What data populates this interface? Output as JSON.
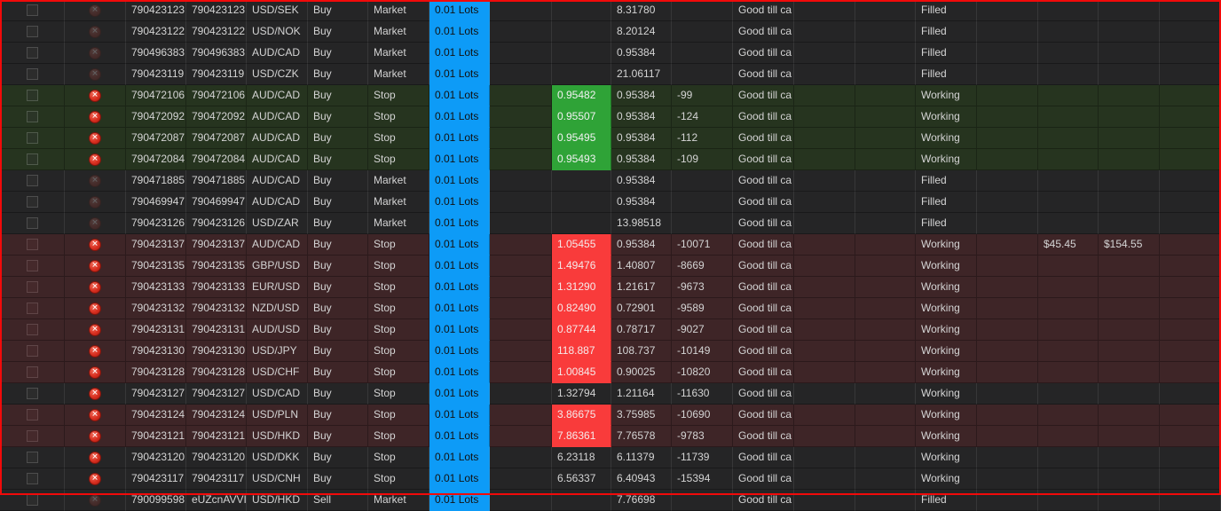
{
  "colors": {
    "row_dark": "#252526",
    "row_green": "#26341f",
    "row_maroon": "#3e2527",
    "lots_column_highlight": "#0d9bf7",
    "entry_green_highlight": "#2fa337",
    "entry_red_highlight": "#f93b3b",
    "annotation_border": "#f20a0a",
    "text": "#d4d4d4"
  },
  "icons": {
    "cancel_order": "cancel-x-circle",
    "checkbox": "row-select-checkbox"
  },
  "table": {
    "rows": [
      {
        "order_id": "790423123",
        "position_id": "790423123",
        "symbol": "USD/SEK",
        "side": "Buy",
        "order_type": "Market",
        "lots": "0.01 Lots",
        "entry_price": "",
        "entry_highlight": "none",
        "current_price": "8.31780",
        "distance": "",
        "expiry": "Good till ca",
        "status": "Filled",
        "gain": "",
        "loss": "",
        "row_style": "dark",
        "cancel_enabled": false
      },
      {
        "order_id": "790423122",
        "position_id": "790423122",
        "symbol": "USD/NOK",
        "side": "Buy",
        "order_type": "Market",
        "lots": "0.01 Lots",
        "entry_price": "",
        "entry_highlight": "none",
        "current_price": "8.20124",
        "distance": "",
        "expiry": "Good till ca",
        "status": "Filled",
        "gain": "",
        "loss": "",
        "row_style": "dark",
        "cancel_enabled": false
      },
      {
        "order_id": "790496383",
        "position_id": "790496383",
        "symbol": "AUD/CAD",
        "side": "Buy",
        "order_type": "Market",
        "lots": "0.01 Lots",
        "entry_price": "",
        "entry_highlight": "none",
        "current_price": "0.95384",
        "distance": "",
        "expiry": "Good till ca",
        "status": "Filled",
        "gain": "",
        "loss": "",
        "row_style": "dark",
        "cancel_enabled": false
      },
      {
        "order_id": "790423119",
        "position_id": "790423119",
        "symbol": "USD/CZK",
        "side": "Buy",
        "order_type": "Market",
        "lots": "0.01 Lots",
        "entry_price": "",
        "entry_highlight": "none",
        "current_price": "21.06117",
        "distance": "",
        "expiry": "Good till ca",
        "status": "Filled",
        "gain": "",
        "loss": "",
        "row_style": "dark",
        "cancel_enabled": false
      },
      {
        "order_id": "790472106",
        "position_id": "790472106",
        "symbol": "AUD/CAD",
        "side": "Buy",
        "order_type": "Stop",
        "lots": "0.01 Lots",
        "entry_price": "0.95482",
        "entry_highlight": "green",
        "current_price": "0.95384",
        "distance": "-99",
        "expiry": "Good till ca",
        "status": "Working",
        "gain": "",
        "loss": "",
        "row_style": "green",
        "cancel_enabled": true
      },
      {
        "order_id": "790472092",
        "position_id": "790472092",
        "symbol": "AUD/CAD",
        "side": "Buy",
        "order_type": "Stop",
        "lots": "0.01 Lots",
        "entry_price": "0.95507",
        "entry_highlight": "green",
        "current_price": "0.95384",
        "distance": "-124",
        "expiry": "Good till ca",
        "status": "Working",
        "gain": "",
        "loss": "",
        "row_style": "green",
        "cancel_enabled": true
      },
      {
        "order_id": "790472087",
        "position_id": "790472087",
        "symbol": "AUD/CAD",
        "side": "Buy",
        "order_type": "Stop",
        "lots": "0.01 Lots",
        "entry_price": "0.95495",
        "entry_highlight": "green",
        "current_price": "0.95384",
        "distance": "-112",
        "expiry": "Good till ca",
        "status": "Working",
        "gain": "",
        "loss": "",
        "row_style": "green",
        "cancel_enabled": true
      },
      {
        "order_id": "790472084",
        "position_id": "790472084",
        "symbol": "AUD/CAD",
        "side": "Buy",
        "order_type": "Stop",
        "lots": "0.01 Lots",
        "entry_price": "0.95493",
        "entry_highlight": "green",
        "current_price": "0.95384",
        "distance": "-109",
        "expiry": "Good till ca",
        "status": "Working",
        "gain": "",
        "loss": "",
        "row_style": "green",
        "cancel_enabled": true
      },
      {
        "order_id": "790471885",
        "position_id": "790471885",
        "symbol": "AUD/CAD",
        "side": "Buy",
        "order_type": "Market",
        "lots": "0.01 Lots",
        "entry_price": "",
        "entry_highlight": "none",
        "current_price": "0.95384",
        "distance": "",
        "expiry": "Good till ca",
        "status": "Filled",
        "gain": "",
        "loss": "",
        "row_style": "dark",
        "cancel_enabled": false
      },
      {
        "order_id": "790469947",
        "position_id": "790469947",
        "symbol": "AUD/CAD",
        "side": "Buy",
        "order_type": "Market",
        "lots": "0.01 Lots",
        "entry_price": "",
        "entry_highlight": "none",
        "current_price": "0.95384",
        "distance": "",
        "expiry": "Good till ca",
        "status": "Filled",
        "gain": "",
        "loss": "",
        "row_style": "dark",
        "cancel_enabled": false
      },
      {
        "order_id": "790423126",
        "position_id": "790423126",
        "symbol": "USD/ZAR",
        "side": "Buy",
        "order_type": "Market",
        "lots": "0.01 Lots",
        "entry_price": "",
        "entry_highlight": "none",
        "current_price": "13.98518",
        "distance": "",
        "expiry": "Good till ca",
        "status": "Filled",
        "gain": "",
        "loss": "",
        "row_style": "dark",
        "cancel_enabled": false
      },
      {
        "order_id": "790423137",
        "position_id": "790423137",
        "symbol": "AUD/CAD",
        "side": "Buy",
        "order_type": "Stop",
        "lots": "0.01 Lots",
        "entry_price": "1.05455",
        "entry_highlight": "red",
        "current_price": "0.95384",
        "distance": "-10071",
        "expiry": "Good till ca",
        "status": "Working",
        "gain": "$45.45",
        "loss": "$154.55",
        "row_style": "maroon",
        "cancel_enabled": true
      },
      {
        "order_id": "790423135",
        "position_id": "790423135",
        "symbol": "GBP/USD",
        "side": "Buy",
        "order_type": "Stop",
        "lots": "0.01 Lots",
        "entry_price": "1.49476",
        "entry_highlight": "red",
        "current_price": "1.40807",
        "distance": "-8669",
        "expiry": "Good till ca",
        "status": "Working",
        "gain": "",
        "loss": "",
        "row_style": "maroon",
        "cancel_enabled": true
      },
      {
        "order_id": "790423133",
        "position_id": "790423133",
        "symbol": "EUR/USD",
        "side": "Buy",
        "order_type": "Stop",
        "lots": "0.01 Lots",
        "entry_price": "1.31290",
        "entry_highlight": "red",
        "current_price": "1.21617",
        "distance": "-9673",
        "expiry": "Good till ca",
        "status": "Working",
        "gain": "",
        "loss": "",
        "row_style": "maroon",
        "cancel_enabled": true
      },
      {
        "order_id": "790423132",
        "position_id": "790423132",
        "symbol": "NZD/USD",
        "side": "Buy",
        "order_type": "Stop",
        "lots": "0.01 Lots",
        "entry_price": "0.82490",
        "entry_highlight": "red",
        "current_price": "0.72901",
        "distance": "-9589",
        "expiry": "Good till ca",
        "status": "Working",
        "gain": "",
        "loss": "",
        "row_style": "maroon",
        "cancel_enabled": true
      },
      {
        "order_id": "790423131",
        "position_id": "790423131",
        "symbol": "AUD/USD",
        "side": "Buy",
        "order_type": "Stop",
        "lots": "0.01 Lots",
        "entry_price": "0.87744",
        "entry_highlight": "red",
        "current_price": "0.78717",
        "distance": "-9027",
        "expiry": "Good till ca",
        "status": "Working",
        "gain": "",
        "loss": "",
        "row_style": "maroon",
        "cancel_enabled": true
      },
      {
        "order_id": "790423130",
        "position_id": "790423130",
        "symbol": "USD/JPY",
        "side": "Buy",
        "order_type": "Stop",
        "lots": "0.01 Lots",
        "entry_price": "118.887",
        "entry_highlight": "red",
        "current_price": "108.737",
        "distance": "-10149",
        "expiry": "Good till ca",
        "status": "Working",
        "gain": "",
        "loss": "",
        "row_style": "maroon",
        "cancel_enabled": true
      },
      {
        "order_id": "790423128",
        "position_id": "790423128",
        "symbol": "USD/CHF",
        "side": "Buy",
        "order_type": "Stop",
        "lots": "0.01 Lots",
        "entry_price": "1.00845",
        "entry_highlight": "red",
        "current_price": "0.90025",
        "distance": "-10820",
        "expiry": "Good till ca",
        "status": "Working",
        "gain": "",
        "loss": "",
        "row_style": "maroon",
        "cancel_enabled": true
      },
      {
        "order_id": "790423127",
        "position_id": "790423127",
        "symbol": "USD/CAD",
        "side": "Buy",
        "order_type": "Stop",
        "lots": "0.01 Lots",
        "entry_price": "1.32794",
        "entry_highlight": "none",
        "current_price": "1.21164",
        "distance": "-11630",
        "expiry": "Good till ca",
        "status": "Working",
        "gain": "",
        "loss": "",
        "row_style": "dark",
        "cancel_enabled": true
      },
      {
        "order_id": "790423124",
        "position_id": "790423124",
        "symbol": "USD/PLN",
        "side": "Buy",
        "order_type": "Stop",
        "lots": "0.01 Lots",
        "entry_price": "3.86675",
        "entry_highlight": "red",
        "current_price": "3.75985",
        "distance": "-10690",
        "expiry": "Good till ca",
        "status": "Working",
        "gain": "",
        "loss": "",
        "row_style": "maroon",
        "cancel_enabled": true
      },
      {
        "order_id": "790423121",
        "position_id": "790423121",
        "symbol": "USD/HKD",
        "side": "Buy",
        "order_type": "Stop",
        "lots": "0.01 Lots",
        "entry_price": "7.86361",
        "entry_highlight": "red",
        "current_price": "7.76578",
        "distance": "-9783",
        "expiry": "Good till ca",
        "status": "Working",
        "gain": "",
        "loss": "",
        "row_style": "maroon",
        "cancel_enabled": true
      },
      {
        "order_id": "790423120",
        "position_id": "790423120",
        "symbol": "USD/DKK",
        "side": "Buy",
        "order_type": "Stop",
        "lots": "0.01 Lots",
        "entry_price": "6.23118",
        "entry_highlight": "none",
        "current_price": "6.11379",
        "distance": "-11739",
        "expiry": "Good till ca",
        "status": "Working",
        "gain": "",
        "loss": "",
        "row_style": "dark",
        "cancel_enabled": true
      },
      {
        "order_id": "790423117",
        "position_id": "790423117",
        "symbol": "USD/CNH",
        "side": "Buy",
        "order_type": "Stop",
        "lots": "0.01 Lots",
        "entry_price": "6.56337",
        "entry_highlight": "none",
        "current_price": "6.40943",
        "distance": "-15394",
        "expiry": "Good till ca",
        "status": "Working",
        "gain": "",
        "loss": "",
        "row_style": "dark",
        "cancel_enabled": true
      },
      {
        "order_id": "790099598",
        "position_id": "eUZcnAVVI(",
        "symbol": "USD/HKD",
        "side": "Sell",
        "order_type": "Market",
        "lots": "0.01 Lots",
        "entry_price": "",
        "entry_highlight": "none",
        "current_price": "7.76698",
        "distance": "",
        "expiry": "Good till ca",
        "status": "Filled",
        "gain": "",
        "loss": "",
        "row_style": "dark",
        "cancel_enabled": false
      }
    ]
  }
}
